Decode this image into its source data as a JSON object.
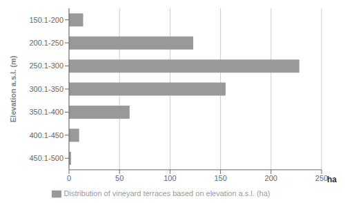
{
  "chart_data": {
    "type": "bar",
    "orientation": "horizontal",
    "categories": [
      "150.1-200",
      "200.1-250",
      "250.1-300",
      "300.1-350",
      "350.1-400",
      "400.1-450",
      "450.1-500"
    ],
    "series": [
      {
        "name": "Distribution of vineyard terraces based on elevation a.s.l. (ha)",
        "color": "#999999",
        "values": [
          14,
          123,
          228,
          155,
          60,
          10,
          2
        ]
      }
    ],
    "ylabel": "Elevation a.s.l. (m)",
    "annotations": [
      "ha"
    ],
    "xlim": [
      0,
      250
    ],
    "xticks": [
      0,
      50,
      100,
      150,
      200,
      250
    ],
    "grid": true,
    "legend": "bottom"
  }
}
